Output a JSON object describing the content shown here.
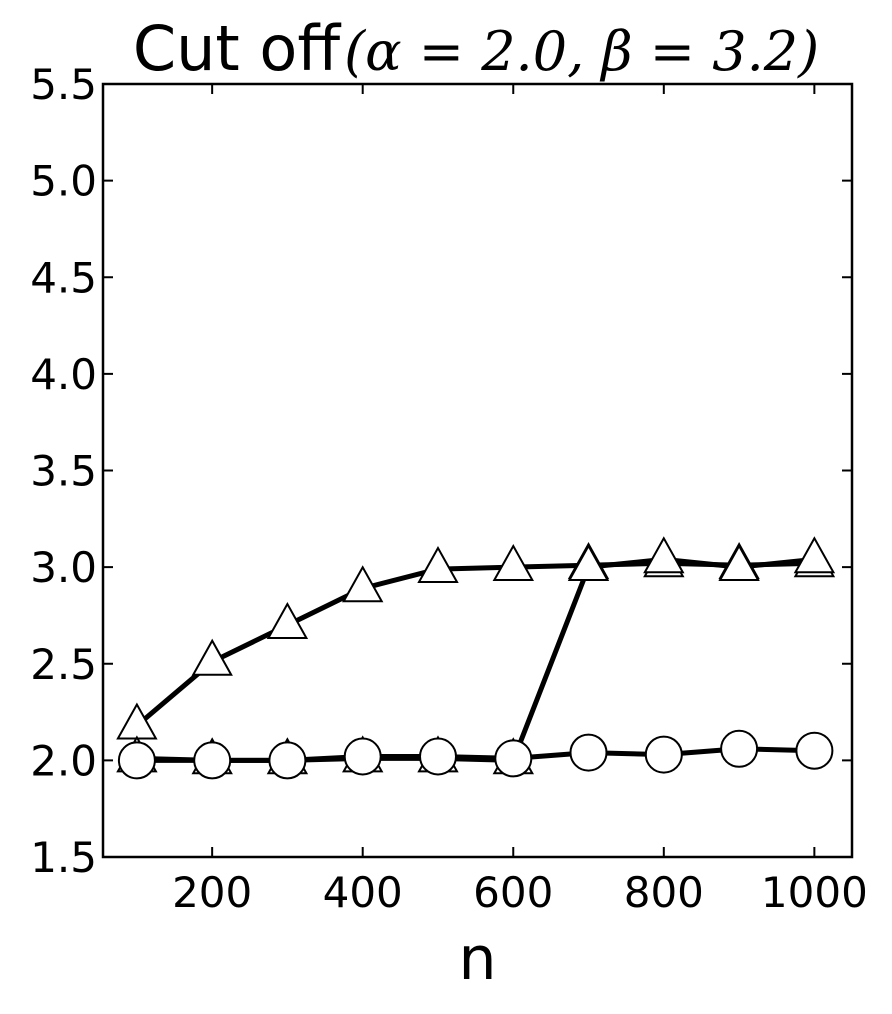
{
  "chart_data": {
    "type": "line",
    "title_text": "Cut off",
    "title_math": "(α = 2.0, β = 3.2)",
    "xlabel": "n",
    "ylabel": "",
    "xlim": [
      55,
      1050
    ],
    "ylim": [
      1.5,
      5.5
    ],
    "x": [
      100,
      200,
      300,
      400,
      500,
      600,
      700,
      800,
      900,
      1000
    ],
    "xticks": [
      200,
      400,
      600,
      800,
      1000
    ],
    "xtick_labels": [
      "200",
      "400",
      "600",
      "800",
      "1000"
    ],
    "yticks": [
      1.5,
      2.0,
      2.5,
      3.0,
      3.5,
      4.0,
      4.5,
      5.0,
      5.5
    ],
    "ytick_labels": [
      "1.5",
      "2.0",
      "2.5",
      "3.0",
      "3.5",
      "4.0",
      "4.5",
      "5.0",
      "5.5"
    ],
    "grid": false,
    "legend": false,
    "series": [
      {
        "marker": "triangle",
        "color": "#000000",
        "values": [
          2.18,
          2.51,
          2.7,
          2.89,
          2.99,
          3.0,
          3.01,
          3.02,
          3.01,
          3.02
        ]
      },
      {
        "marker": "triangle",
        "color": "#000000",
        "values": [
          2.01,
          2.0,
          2.0,
          2.01,
          2.01,
          2.0,
          3.0,
          3.04,
          3.0,
          3.04
        ]
      },
      {
        "marker": "circle",
        "color": "#000000",
        "values": [
          2.0,
          2.0,
          2.0,
          2.02,
          2.02,
          2.01,
          2.04,
          2.03,
          2.06,
          2.05
        ]
      }
    ]
  }
}
